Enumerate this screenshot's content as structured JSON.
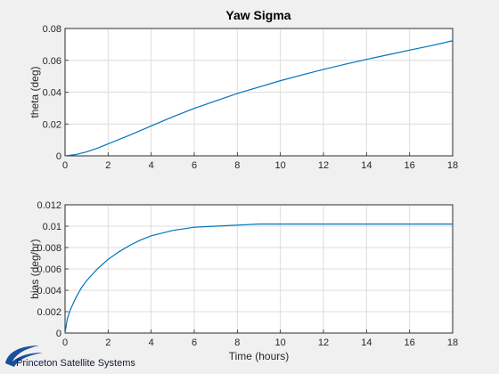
{
  "figure": {
    "title": "Yaw Sigma",
    "logo_text": "Princeton Satellite Systems",
    "colors": {
      "background": "#f0f0f0",
      "line": "#0072bd",
      "grid": "#dcdcdc",
      "logo": "#1a4f9c"
    }
  },
  "chart_data": [
    {
      "type": "line",
      "title": "Yaw Sigma",
      "xlabel": "",
      "ylabel": "theta (deg)",
      "xlim": [
        0,
        18
      ],
      "ylim": [
        0,
        0.08
      ],
      "xticks": [
        0,
        2,
        4,
        6,
        8,
        10,
        12,
        14,
        16,
        18
      ],
      "yticks": [
        0,
        0.02,
        0.04,
        0.06,
        0.08
      ],
      "xtick_labels": [
        "0",
        "2",
        "4",
        "6",
        "8",
        "10",
        "12",
        "14",
        "16",
        "18"
      ],
      "ytick_labels": [
        "0",
        "0.02",
        "0.04",
        "0.06",
        "0.08"
      ],
      "grid": true,
      "series": [
        {
          "x": [
            0,
            0.5,
            1,
            1.5,
            2,
            3,
            4,
            5,
            6,
            7,
            8,
            9,
            10,
            11,
            12,
            13,
            14,
            15,
            16,
            17,
            18
          ],
          "y": [
            0,
            0.0008,
            0.0025,
            0.0048,
            0.0075,
            0.013,
            0.0188,
            0.0245,
            0.0298,
            0.0345,
            0.0392,
            0.0432,
            0.0472,
            0.0508,
            0.0543,
            0.0575,
            0.0606,
            0.0635,
            0.0664,
            0.0692,
            0.0723
          ]
        }
      ]
    },
    {
      "type": "line",
      "xlabel": "Time (hours)",
      "ylabel": "bias (deg/hr)",
      "xlim": [
        0,
        18
      ],
      "ylim": [
        0,
        0.012
      ],
      "xticks": [
        0,
        2,
        4,
        6,
        8,
        10,
        12,
        14,
        16,
        18
      ],
      "yticks": [
        0,
        0.002,
        0.004,
        0.006,
        0.008,
        0.01,
        0.012
      ],
      "xtick_labels": [
        "0",
        "2",
        "4",
        "6",
        "8",
        "10",
        "12",
        "14",
        "16",
        "18"
      ],
      "ytick_labels": [
        "0",
        "0.002",
        "0.004",
        "0.006",
        "0.008",
        "0.01",
        "0.012"
      ],
      "grid": true,
      "series": [
        {
          "x": [
            0,
            0.1,
            0.25,
            0.5,
            0.75,
            1,
            1.5,
            2,
            2.5,
            3,
            3.5,
            4,
            5,
            6,
            7,
            8,
            9,
            10,
            12,
            14,
            16,
            18
          ],
          "y": [
            0,
            0.0013,
            0.0022,
            0.0033,
            0.0042,
            0.0049,
            0.006,
            0.0069,
            0.0076,
            0.0082,
            0.0087,
            0.0091,
            0.0096,
            0.0099,
            0.01,
            0.0101,
            0.0102,
            0.0102,
            0.0102,
            0.0102,
            0.0102,
            0.0102
          ]
        }
      ]
    }
  ]
}
